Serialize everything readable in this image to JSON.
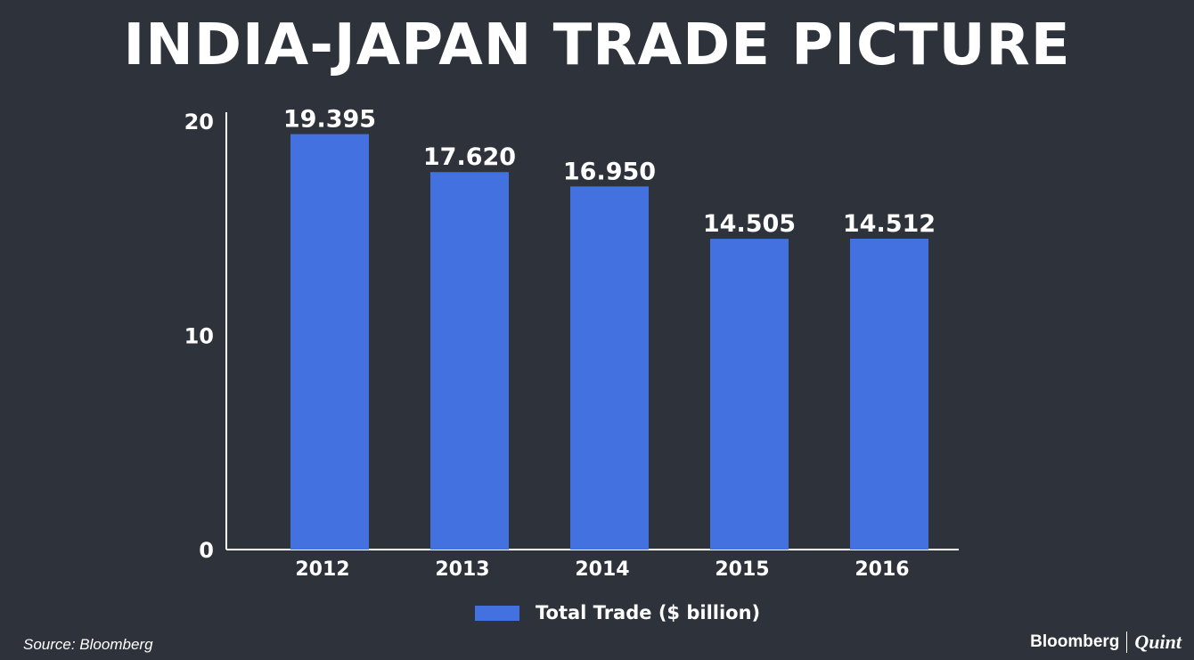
{
  "chart_data": {
    "type": "bar",
    "title": "INDIA-JAPAN TRADE PICTURE",
    "categories": [
      "2012",
      "2013",
      "2014",
      "2015",
      "2016"
    ],
    "series": [
      {
        "name": "Total Trade ($ billion)",
        "values": [
          19.395,
          17.62,
          16.95,
          14.505,
          14.512
        ]
      }
    ],
    "value_labels": [
      "19.395",
      "17.620",
      "16.950",
      "14.505",
      "14.512"
    ],
    "y_ticks": [
      "0",
      "10",
      "20"
    ],
    "ylim": [
      0,
      20
    ],
    "xlabel": "",
    "ylabel": "",
    "grid": false,
    "legend_position": "bottom-center",
    "colors": {
      "bar": "#4372e0",
      "background": "#2d323b",
      "text": "#ffffff"
    }
  },
  "footer": {
    "source": "Source: Bloomberg",
    "brand_left": "Bloomberg",
    "brand_right": "Quint"
  }
}
